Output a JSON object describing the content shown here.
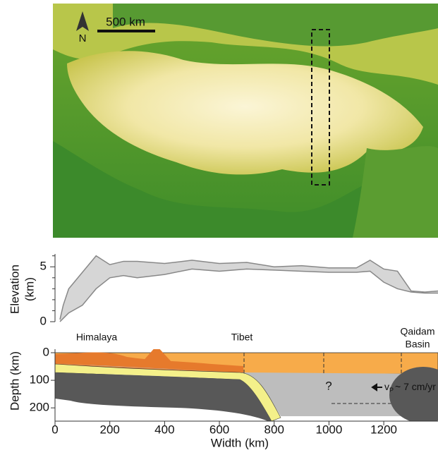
{
  "map": {
    "scale_label": "500 km",
    "north_label": "N"
  },
  "elevation": {
    "ylabel": [
      "Elevation",
      "(km)"
    ],
    "ylim": [
      0,
      6.3
    ],
    "yticks": [
      0,
      5
    ],
    "minor_yticks": [
      1,
      2,
      3,
      4,
      6
    ],
    "x": [
      18,
      30,
      50,
      100,
      150,
      200,
      250,
      300,
      400,
      500,
      600,
      700,
      800,
      900,
      1000,
      1100,
      1150,
      1200,
      1250,
      1300,
      1350,
      1398
    ],
    "upper": [
      0.2,
      1.5,
      3.0,
      4.5,
      6.0,
      5.2,
      5.5,
      5.5,
      5.3,
      5.6,
      5.3,
      5.4,
      5.0,
      5.1,
      4.9,
      4.9,
      5.6,
      4.8,
      4.6,
      2.8,
      2.7,
      2.8
    ],
    "lower": [
      0,
      0.3,
      0.8,
      1.5,
      3.0,
      4.0,
      4.2,
      4.0,
      4.3,
      4.8,
      4.6,
      4.8,
      4.7,
      4.6,
      4.5,
      4.5,
      4.6,
      3.6,
      3.0,
      2.7,
      2.6,
      2.6
    ]
  },
  "section": {
    "ylabel": "Depth (km)",
    "ylim": [
      0,
      220
    ],
    "yticks": [
      0,
      100,
      200
    ],
    "xlim": [
      0,
      1398
    ],
    "xticks": [
      0,
      200,
      400,
      600,
      800,
      1000,
      1200
    ],
    "xlabel": "Width (km)",
    "himalaya": "Himalaya",
    "tibet": "Tibet",
    "qaidam": [
      "Qaidam",
      "Basin"
    ],
    "question": "?",
    "velocity": [
      "v",
      "P",
      "~ 7 cm/yr"
    ]
  }
}
